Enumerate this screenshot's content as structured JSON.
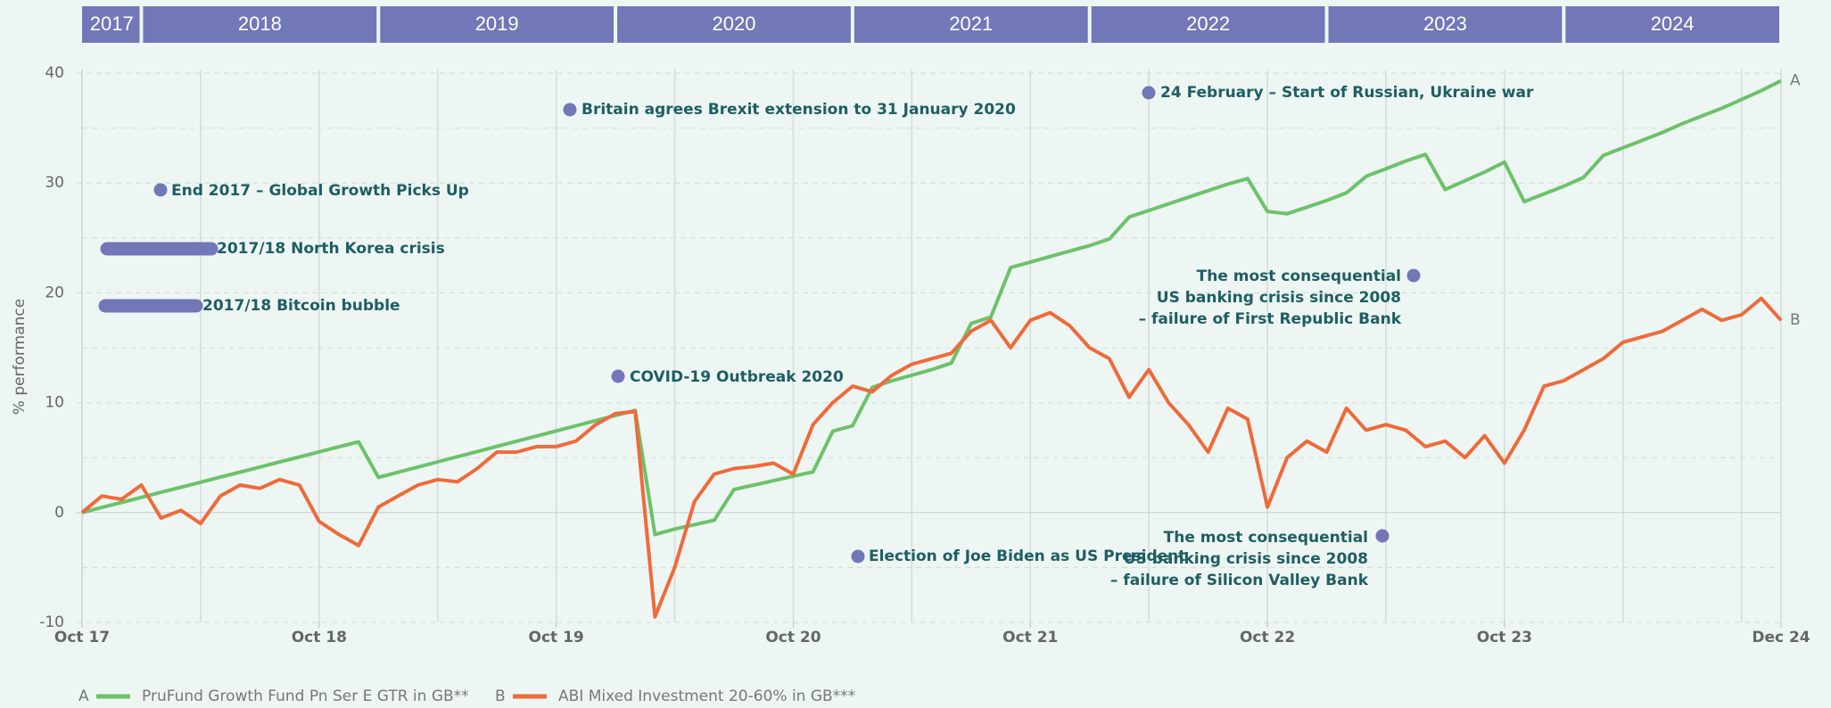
{
  "chart_data": {
    "type": "line",
    "ylabel": "% performance",
    "periods": [
      "2017",
      "2018",
      "2019",
      "2020",
      "2021",
      "2022",
      "2023",
      "2024"
    ],
    "categories": [
      "Oct 17",
      null,
      null,
      null,
      null,
      null,
      null,
      null,
      null,
      null,
      null,
      null,
      "Oct 18",
      null,
      null,
      null,
      null,
      null,
      null,
      null,
      null,
      null,
      null,
      null,
      "Oct 19",
      null,
      null,
      null,
      null,
      null,
      null,
      null,
      null,
      null,
      null,
      null,
      "Oct 20",
      null,
      null,
      null,
      null,
      null,
      null,
      null,
      null,
      null,
      null,
      null,
      "Oct 21",
      null,
      null,
      null,
      null,
      null,
      null,
      null,
      null,
      null,
      null,
      null,
      "Oct 22",
      null,
      null,
      null,
      null,
      null,
      null,
      null,
      null,
      null,
      null,
      null,
      "Oct 23",
      null,
      null,
      null,
      null,
      null,
      null,
      null,
      null,
      null,
      null,
      null,
      null,
      null,
      "Dec 24"
    ],
    "series": [
      {
        "label": "A",
        "name": "PruFund Growth Fund Pn Ser E GTR in GB**",
        "color": "#6cc26a",
        "values": [
          0,
          0.46,
          0.92,
          1.38,
          1.84,
          2.3,
          2.76,
          3.22,
          3.68,
          4.14,
          4.6,
          5.06,
          5.52,
          5.98,
          6.44,
          3.2,
          3.67,
          4.14,
          4.61,
          5.08,
          5.55,
          6.02,
          6.49,
          6.96,
          7.43,
          7.9,
          8.37,
          8.84,
          9.3,
          -2.0,
          -1.5,
          -1.1,
          -0.7,
          2.1,
          2.5,
          2.9,
          3.3,
          3.7,
          7.4,
          7.9,
          11.4,
          12.0,
          12.5,
          13.0,
          13.6,
          17.2,
          17.8,
          22.3,
          22.8,
          23.3,
          23.8,
          24.3,
          24.9,
          26.9,
          27.5,
          28.1,
          28.7,
          29.3,
          29.9,
          30.4,
          27.4,
          27.2,
          27.8,
          28.4,
          29.1,
          30.6,
          31.3,
          32.0,
          32.6,
          29.4,
          30.2,
          31.0,
          31.9,
          28.3,
          29.0,
          29.7,
          30.5,
          32.5,
          33.2,
          33.9,
          34.6,
          35.4,
          36.1,
          36.8,
          37.6,
          38.4,
          39.3
        ]
      },
      {
        "label": "B",
        "name": "ABI Mixed Investment 20-60% in GB***",
        "color": "#ef6a3a",
        "values": [
          0,
          1.5,
          1.2,
          2.5,
          -0.5,
          0.2,
          -1.0,
          1.5,
          2.5,
          2.2,
          3.0,
          2.5,
          -0.8,
          -2.0,
          -3.0,
          0.5,
          1.5,
          2.5,
          3.0,
          2.8,
          4.0,
          5.5,
          5.5,
          6.0,
          6.0,
          6.5,
          8.0,
          9.0,
          9.2,
          -9.5,
          -5.0,
          1.0,
          3.5,
          4.0,
          4.2,
          4.5,
          3.5,
          8.0,
          10.0,
          11.5,
          11.0,
          12.5,
          13.5,
          14.0,
          14.5,
          16.5,
          17.5,
          15.0,
          17.5,
          18.2,
          17.0,
          15.0,
          14.0,
          10.5,
          13.0,
          10.0,
          8.0,
          5.5,
          9.5,
          8.5,
          0.5,
          5.0,
          6.5,
          5.5,
          9.5,
          7.5,
          8.0,
          7.5,
          6.0,
          6.5,
          5.0,
          7.0,
          4.5,
          7.5,
          11.5,
          12.0,
          13.0,
          14.0,
          15.5,
          16.0,
          16.5,
          17.5,
          18.5,
          17.5,
          18.0,
          19.5,
          17.5
        ]
      }
    ],
    "ylim": [
      -10,
      40
    ],
    "yticks": [
      -10,
      0,
      10,
      20,
      30,
      40
    ],
    "minor_yticks": [
      -5,
      5,
      15,
      25,
      35
    ],
    "grid": true,
    "annotations": [
      {
        "lines": [
          "End 2017 – Global Growth Picks Up"
        ]
      },
      {
        "lines": [
          "2017/18 North Korea crisis"
        ]
      },
      {
        "lines": [
          "2017/18 Bitcoin bubble"
        ]
      },
      {
        "lines": [
          "Britain agrees Brexit extension to 31 January 2020"
        ]
      },
      {
        "lines": [
          "COVID-19 Outbreak 2020"
        ]
      },
      {
        "lines": [
          "Election of Joe Biden as US President"
        ]
      },
      {
        "lines": [
          "24 February – Start of Russian, Ukraine war"
        ]
      },
      {
        "lines": [
          "The most consequential",
          "US banking crisis since 2008",
          "– failure of First Republic Bank"
        ]
      },
      {
        "lines": [
          "The most consequential",
          "US banking crisis since 2008",
          "– failure of Silicon Valley Bank"
        ]
      }
    ]
  }
}
